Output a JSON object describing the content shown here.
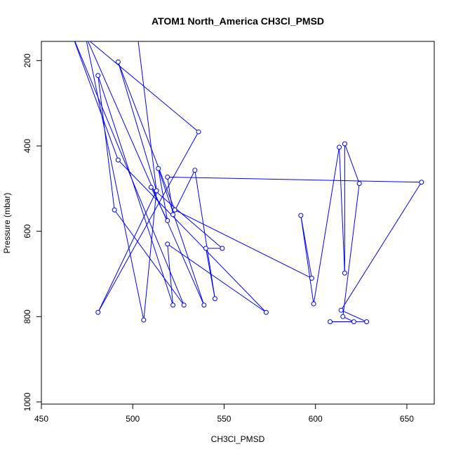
{
  "chart_data": {
    "type": "line",
    "title": "ATOM1 North_America CH3Cl_PMSD",
    "xlabel": "CH3Cl_PMSD",
    "ylabel": "Pressure (mbar)",
    "xlim": [
      450,
      665
    ],
    "ylim": [
      1005,
      155
    ],
    "y_reversed": true,
    "x_ticks": [
      450,
      500,
      550,
      600,
      650
    ],
    "y_ticks": [
      200,
      400,
      600,
      800,
      1000
    ],
    "grid": false,
    "colors": {
      "series": "#0000ff",
      "axis": "#000000"
    },
    "series": [
      {
        "marker": "open-circle",
        "points": [
          [
            466,
            130
          ],
          [
            492,
            433
          ],
          [
            573,
            790
          ],
          [
            519,
            630
          ],
          [
            522,
            773
          ],
          [
            481,
            235
          ],
          [
            490,
            550
          ],
          [
            528,
            773
          ],
          [
            464,
            110
          ],
          [
            536,
            367
          ],
          [
            481,
            790
          ],
          [
            513,
            505
          ],
          [
            492,
            203
          ],
          [
            523,
            550
          ],
          [
            598,
            710
          ],
          [
            592,
            563
          ],
          [
            599,
            770
          ],
          [
            613,
            403
          ],
          [
            616,
            698
          ],
          [
            616,
            395
          ],
          [
            624,
            488
          ],
          [
            615,
            800
          ],
          [
            621,
            812
          ],
          [
            608,
            812
          ],
          [
            628,
            812
          ],
          [
            614,
            785
          ],
          [
            658,
            485
          ],
          [
            519,
            473
          ],
          [
            522,
            561
          ],
          [
            534,
            457
          ],
          [
            545,
            758
          ],
          [
            540,
            640
          ],
          [
            549,
            640
          ],
          [
            510,
            497
          ],
          [
            519,
            575
          ],
          [
            514,
            453
          ],
          [
            539,
            773
          ],
          [
            474,
            140
          ],
          [
            506,
            808
          ],
          [
            513,
            505
          ],
          [
            502,
            120
          ]
        ]
      }
    ]
  }
}
